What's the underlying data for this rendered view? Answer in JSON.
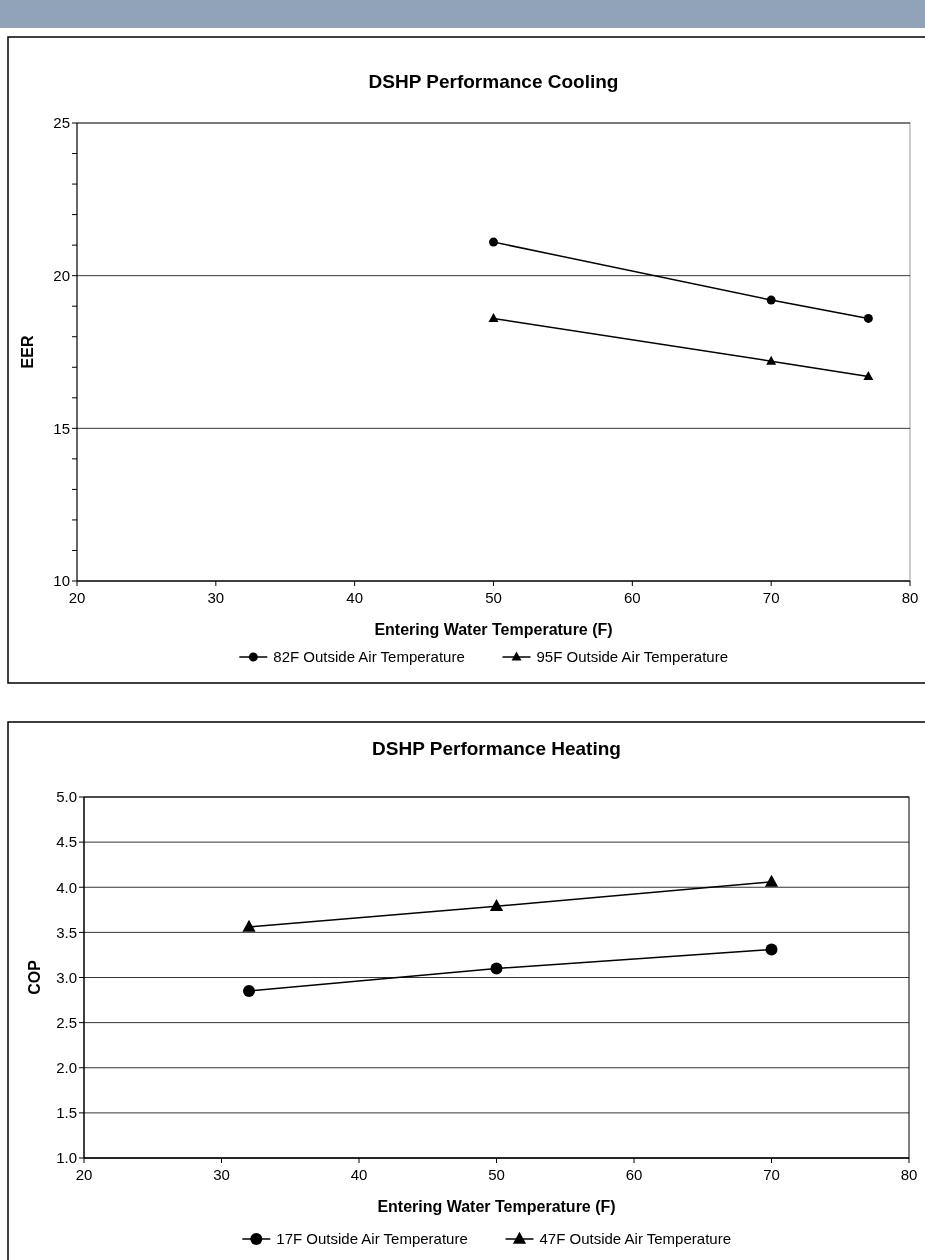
{
  "chart_data": [
    {
      "type": "line",
      "title": "DSHP Performance Cooling",
      "xlabel": "Entering Water Temperature (F)",
      "ylabel": "EER",
      "xlim": [
        20,
        80
      ],
      "xticks": [
        20,
        30,
        40,
        50,
        60,
        70,
        80
      ],
      "ylim": [
        10,
        25
      ],
      "yticks": [
        10,
        {
          "value": 11,
          "label": null
        },
        {
          "value": 12,
          "label": null
        },
        {
          "value": 13,
          "label": null
        },
        {
          "value": 14,
          "label": null
        },
        15,
        {
          "value": 16,
          "label": null
        },
        {
          "value": 17,
          "label": null
        },
        {
          "value": 18,
          "label": null
        },
        {
          "value": 19,
          "label": null
        },
        20,
        {
          "value": 21,
          "label": null
        },
        {
          "value": 22,
          "label": null
        },
        {
          "value": 23,
          "label": null
        },
        {
          "value": 24,
          "label": null
        },
        25
      ],
      "grid": "y",
      "legend": "bottom",
      "series": [
        {
          "name": "82F Outside Air Temperature",
          "color": "#000000",
          "marker": "circle",
          "x": [
            50,
            70,
            77
          ],
          "values": [
            21.1,
            19.2,
            18.6
          ]
        },
        {
          "name": "95F Outside Air Temperature",
          "color": "#000000",
          "marker": "triangle",
          "x": [
            50,
            70,
            77
          ],
          "values": [
            18.6,
            17.2,
            16.7
          ]
        }
      ]
    },
    {
      "type": "line",
      "title": "DSHP Performance Heating",
      "xlabel": "Entering Water Temperature (F)",
      "ylabel": "COP",
      "xlim": [
        20,
        80
      ],
      "xticks": [
        20,
        30,
        40,
        50,
        60,
        70,
        80
      ],
      "ylim": [
        1,
        5
      ],
      "yticks": [
        {
          "value": 1,
          "label": "1.0"
        },
        {
          "value": 1.5,
          "label": "1.5"
        },
        {
          "value": 2,
          "label": "2.0"
        },
        {
          "value": 2.5,
          "label": "2.5"
        },
        {
          "value": 3,
          "label": "3.0"
        },
        {
          "value": 3.5,
          "label": "3.5"
        },
        {
          "value": 4,
          "label": "4.0"
        },
        {
          "value": 4.5,
          "label": "4.5"
        },
        {
          "value": 5,
          "label": "5.0"
        }
      ],
      "grid": "y",
      "legend": "bottom",
      "series": [
        {
          "name": "17F Outside Air Temperature",
          "color": "#000000",
          "marker": "circle",
          "x": [
            32,
            50,
            70
          ],
          "values": [
            2.85,
            3.1,
            3.31
          ]
        },
        {
          "name": "47F Outside Air Temperature",
          "color": "#000000",
          "marker": "triangle",
          "x": [
            32,
            50,
            70
          ],
          "values": [
            3.56,
            3.79,
            4.06
          ]
        }
      ]
    }
  ]
}
